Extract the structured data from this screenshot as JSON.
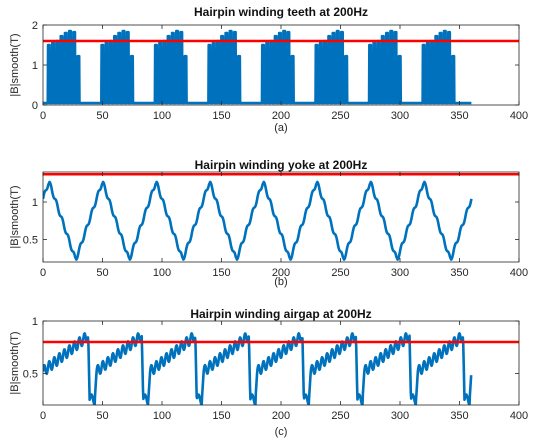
{
  "figure": {
    "background": "#ffffff",
    "series_color": "#0072BD",
    "threshold_color": "#FF0000"
  },
  "chart_data": [
    {
      "type": "line",
      "title": "Hairpin winding teeth at 200Hz",
      "ylabel": "|B|smooth(T)",
      "caption": "(a)",
      "xlim": [
        0,
        400
      ],
      "ylim": [
        0,
        2
      ],
      "xticks": [
        0,
        50,
        100,
        150,
        200,
        250,
        300,
        350,
        400
      ],
      "yticks": [
        0,
        1,
        2
      ],
      "threshold": 1.6,
      "series": [
        {
          "style": "pulse-train",
          "x_start": 0,
          "x_end": 360,
          "period": 45,
          "pulses_per_group": 8,
          "pulse_spacing": 3.55,
          "pulse_width": 1.8,
          "group_start_offsets": [
            4,
            49,
            94,
            139,
            184,
            229,
            274,
            319
          ],
          "pulse_peaks": [
            1.5,
            1.55,
            1.6,
            1.72,
            1.8,
            1.85,
            1.82,
            1.22
          ],
          "baseline": 0.05
        }
      ]
    },
    {
      "type": "line",
      "title": "Hairpin winding yoke at 200Hz",
      "ylabel": "|B|smooth(T)",
      "caption": "(b)",
      "xlim": [
        0,
        400
      ],
      "ylim": [
        0.2,
        1.4
      ],
      "xticks": [
        0,
        50,
        100,
        150,
        200,
        250,
        300,
        350,
        400
      ],
      "yticks": [
        0.5,
        1
      ],
      "threshold": 1.37,
      "series": [
        {
          "style": "triangular-wave",
          "x_start": 0,
          "x_end": 360,
          "period": 45,
          "max": 1.25,
          "min": 0.25,
          "max_at": [
            5,
            50,
            95,
            140,
            185,
            230,
            275,
            320
          ],
          "min_at": [
            27.5,
            72.5,
            117.5,
            162.5,
            207.5,
            252.5,
            297.5,
            342.5
          ],
          "ripple": 0.03
        }
      ]
    },
    {
      "type": "line",
      "title": "Hairpin winding airgap at 200Hz",
      "ylabel": "|B|smooth(T)",
      "caption": "(c)",
      "xlim": [
        0,
        400
      ],
      "ylim": [
        0.2,
        1.0
      ],
      "xticks": [
        0,
        50,
        100,
        150,
        200,
        250,
        300,
        350,
        400
      ],
      "yticks": [
        0.5,
        1
      ],
      "threshold": 0.8,
      "series": [
        {
          "style": "sawtooth-ripple",
          "x_start": 0,
          "x_end": 360,
          "period": 45,
          "drop_at": [
            38,
            83,
            128,
            173,
            218,
            263,
            308,
            353
          ],
          "rise_from": 0.52,
          "rise_to": 0.86,
          "low": 0.25,
          "ripple_amplitude": 0.05,
          "ripples_per_period": 9
        }
      ]
    }
  ]
}
